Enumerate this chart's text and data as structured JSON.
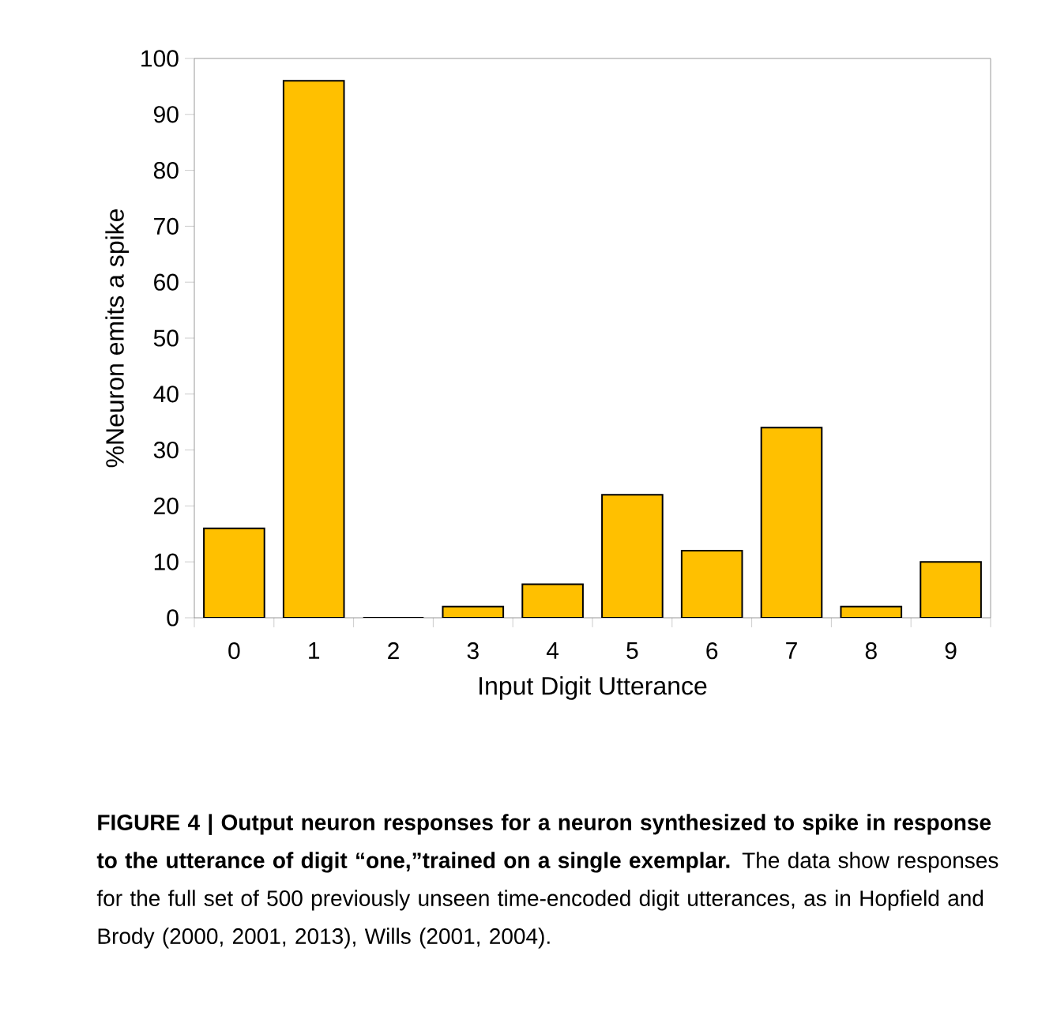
{
  "chart_data": {
    "type": "bar",
    "xlabel": "Input Digit Utterance",
    "ylabel": "%Neuron emits a spike",
    "categories": [
      "0",
      "1",
      "2",
      "3",
      "4",
      "5",
      "6",
      "7",
      "8",
      "9"
    ],
    "values": [
      16,
      96,
      0,
      2,
      6,
      22,
      12,
      34,
      2,
      10
    ],
    "color": "#ffc000",
    "ylim": [
      0,
      100
    ],
    "yticks": [
      0,
      10,
      20,
      30,
      40,
      50,
      60,
      70,
      80,
      90,
      100
    ],
    "annotations": [
      "**FIGURE 4 | Output neuron responses for a neuron synthesized to spike in response to the utterance of digit “one,”trained on a single exemplar.** The data show responses for the full set of 500 previously unseen time-encoded digit utterances, as in Hopfield and Brody (2000, 2001, 2013), Wills (2001, 2004)."
    ]
  }
}
